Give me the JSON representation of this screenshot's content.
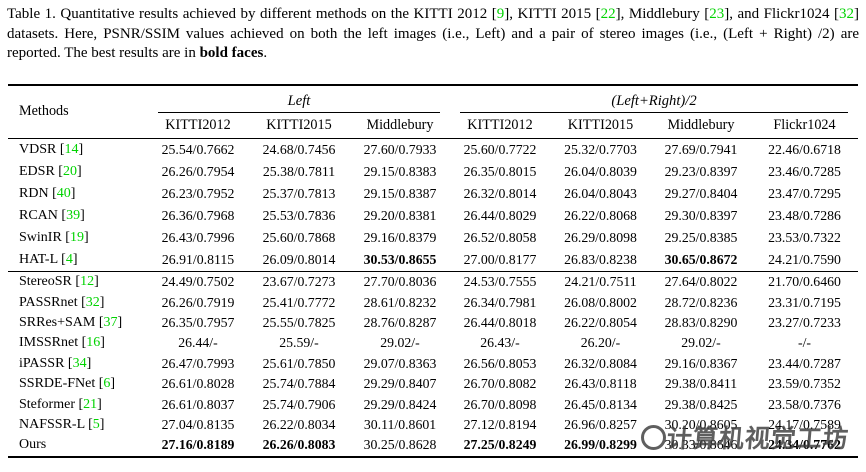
{
  "caption": {
    "segments": [
      {
        "t": "Table 1. Quantitative results achieved by different methods on the KITTI 2012 ["
      },
      {
        "t": "9",
        "green": true
      },
      {
        "t": "], KITTI 2015 ["
      },
      {
        "t": "22",
        "green": true
      },
      {
        "t": "], Middlebury ["
      },
      {
        "t": "23",
        "green": true
      },
      {
        "t": "], and Flickr1024 ["
      },
      {
        "t": "32",
        "green": true
      },
      {
        "t": "] datasets. Here, PSNR/SSIM values achieved on both the left images (i.e., Left) and a pair of stereo images (i.e., (Left + Right) /2) are reported. The best results are in "
      },
      {
        "t": "bold faces",
        "bold": true
      },
      {
        "t": "."
      }
    ]
  },
  "table": {
    "methods_label": "Methods",
    "groups": [
      "Left",
      "(Left+Right)/2"
    ],
    "col_headers": [
      "KITTI2012",
      "KITTI2015",
      "Middlebury",
      "KITTI2012",
      "KITTI2015",
      "Middlebury",
      "Flickr1024"
    ],
    "group1_rows": [
      {
        "method": "VDSR",
        "cite": "14",
        "values": [
          "25.54/0.7662",
          "24.68/0.7456",
          "27.60/0.7933",
          "25.60/0.7722",
          "25.32/0.7703",
          "27.69/0.7941",
          "22.46/0.6718"
        ],
        "bold": []
      },
      {
        "method": "EDSR",
        "cite": "20",
        "values": [
          "26.26/0.7954",
          "25.38/0.7811",
          "29.15/0.8383",
          "26.35/0.8015",
          "26.04/0.8039",
          "29.23/0.8397",
          "23.46/0.7285"
        ],
        "bold": []
      },
      {
        "method": "RDN",
        "cite": "40",
        "values": [
          "26.23/0.7952",
          "25.37/0.7813",
          "29.15/0.8387",
          "26.32/0.8014",
          "26.04/0.8043",
          "29.27/0.8404",
          "23.47/0.7295"
        ],
        "bold": []
      },
      {
        "method": "RCAN",
        "cite": "39",
        "values": [
          "26.36/0.7968",
          "25.53/0.7836",
          "29.20/0.8381",
          "26.44/0.8029",
          "26.22/0.8068",
          "29.30/0.8397",
          "23.48/0.7286"
        ],
        "bold": []
      },
      {
        "method": "SwinIR",
        "cite": "19",
        "values": [
          "26.43/0.7996",
          "25.60/0.7868",
          "29.16/0.8379",
          "26.52/0.8058",
          "26.29/0.8098",
          "29.25/0.8385",
          "23.53/0.7322"
        ],
        "bold": []
      },
      {
        "method": "HAT-L",
        "cite": "4",
        "values": [
          "26.91/0.8115",
          "26.09/0.8014",
          "30.53/0.8655",
          "27.00/0.8177",
          "26.83/0.8238",
          "30.65/0.8672",
          "24.21/0.7590"
        ],
        "bold": [
          2,
          5
        ]
      }
    ],
    "group2_rows": [
      {
        "method": "StereoSR",
        "cite": "12",
        "values": [
          "24.49/0.7502",
          "23.67/0.7273",
          "27.70/0.8036",
          "24.53/0.7555",
          "24.21/0.7511",
          "27.64/0.8022",
          "21.70/0.6460"
        ],
        "bold": []
      },
      {
        "method": "PASSRnet",
        "cite": "32",
        "values": [
          "26.26/0.7919",
          "25.41/0.7772",
          "28.61/0.8232",
          "26.34/0.7981",
          "26.08/0.8002",
          "28.72/0.8236",
          "23.31/0.7195"
        ],
        "bold": []
      },
      {
        "method": "SRRes+SAM",
        "cite": "37",
        "values": [
          "26.35/0.7957",
          "25.55/0.7825",
          "28.76/0.8287",
          "26.44/0.8018",
          "26.22/0.8054",
          "28.83/0.8290",
          "23.27/0.7233"
        ],
        "bold": []
      },
      {
        "method": "IMSSRnet",
        "cite": "16",
        "values": [
          "26.44/-",
          "25.59/-",
          "29.02/-",
          "26.43/-",
          "26.20/-",
          "29.02/-",
          "-/-"
        ],
        "bold": []
      },
      {
        "method": "iPASSR",
        "cite": "34",
        "values": [
          "26.47/0.7993",
          "25.61/0.7850",
          "29.07/0.8363",
          "26.56/0.8053",
          "26.32/0.8084",
          "29.16/0.8367",
          "23.44/0.7287"
        ],
        "bold": []
      },
      {
        "method": "SSRDE-FNet",
        "cite": "6",
        "values": [
          "26.61/0.8028",
          "25.74/0.7884",
          "29.29/0.8407",
          "26.70/0.8082",
          "26.43/0.8118",
          "29.38/0.8411",
          "23.59/0.7352"
        ],
        "bold": []
      },
      {
        "method": "Steformer",
        "cite": "21",
        "values": [
          "26.61/0.8037",
          "25.74/0.7906",
          "29.29/0.8424",
          "26.70/0.8098",
          "26.45/0.8134",
          "29.38/0.8425",
          "23.58/0.7376"
        ],
        "bold": []
      },
      {
        "method": "NAFSSR-L",
        "cite": "5",
        "values": [
          "27.04/0.8135",
          "26.22/0.8034",
          "30.11/0.8601",
          "27.12/0.8194",
          "26.96/0.8257",
          "30.20/0.8605",
          "24.17/0.7589"
        ],
        "bold": []
      },
      {
        "method": "Ours",
        "cite": "",
        "values": [
          "27.16/0.8189",
          "26.26/0.8083",
          "30.25/0.8628",
          "27.25/0.8249",
          "26.99/0.8299",
          "30.33/0.8646",
          "24.34/0.7762"
        ],
        "bold": [
          0,
          1,
          3,
          4,
          6
        ]
      }
    ]
  },
  "watermark": {
    "text": "计算机视觉工坊",
    "color": "#3d3d3d"
  },
  "colors": {
    "citation_green": "#00d300",
    "text": "#000000",
    "rule": "#000000",
    "background": "#ffffff"
  }
}
